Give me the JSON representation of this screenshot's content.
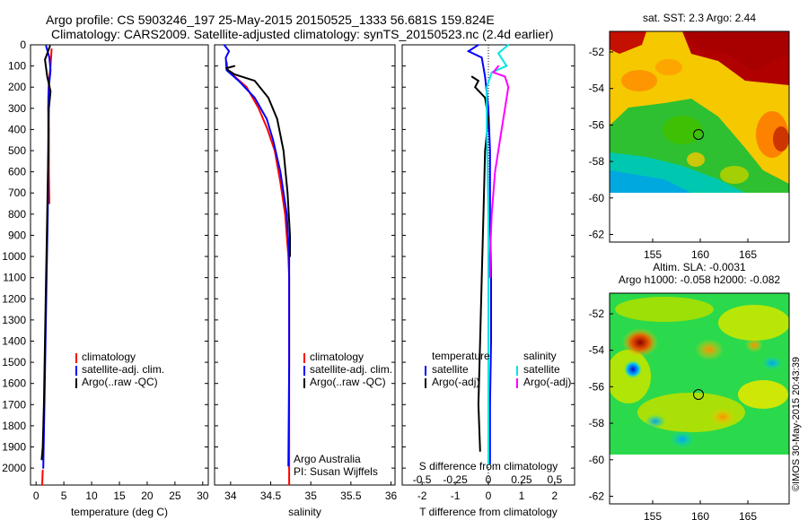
{
  "header": {
    "line1": "Argo profile: CS 5903246_197 25-May-2015 20150525_1333 56.681S 159.824E",
    "line2": "Climatology: CARS2009. Satellite-adjusted climatology: synTS_20150523.nc (2.4d earlier)"
  },
  "depth_axis": {
    "ticks": [
      0,
      100,
      200,
      300,
      400,
      500,
      600,
      700,
      800,
      900,
      1000,
      1100,
      1200,
      1300,
      1400,
      1500,
      1600,
      1700,
      1800,
      1900,
      2000
    ],
    "range": [
      0,
      2080
    ]
  },
  "colors": {
    "climatology": "#ff0000",
    "satellite": "#0000ff",
    "argo": "#000000",
    "sal_satellite": "#00e5e5",
    "sal_argo": "#ff00ff"
  },
  "legend": {
    "climatology": "climatology",
    "satellite_adj": "satellite-adj. clim.",
    "argo_raw": "Argo(..raw -QC)",
    "temperature": "temperature",
    "salinity": "salinity",
    "satellite": "satellite",
    "argo_adj": "Argo(-adj)"
  },
  "credits": {
    "org": "Argo Australia",
    "pi": "PI: Susan Wijffels"
  },
  "maps": {
    "sst_title": "sat. SST: 2.3 Argo: 2.44",
    "sla_title1": "Altim. SLA: -0.0031",
    "sla_title2": "Argo h1000: -0.058 h2000: -0.082",
    "lat_ticks": [
      "-52",
      "-54",
      "-56",
      "-58",
      "-60",
      "-62"
    ],
    "lon_ticks": [
      "155",
      "160",
      "165"
    ],
    "watermark": "©IMOS 30-May-2015 20:43:39"
  },
  "chart_data": [
    {
      "type": "line",
      "xlabel": "temperature (deg C)",
      "ylabel": "",
      "xlim": [
        -1,
        31
      ],
      "ylim": [
        2080,
        0
      ],
      "xticks": [
        "0",
        "5",
        "10",
        "15",
        "20",
        "25",
        "30"
      ],
      "series": [
        {
          "name": "climatology",
          "x": [
            2.8,
            2.6,
            2.3,
            2.2,
            2.2,
            2.3,
            2.3,
            2.3,
            2.4
          ],
          "depth": [
            20,
            100,
            180,
            250,
            300,
            400,
            500,
            600,
            750
          ]
        },
        {
          "name": "satellite-adj. clim.",
          "x": [
            1.8,
            2.4,
            2.6,
            2.3,
            2.2,
            2.2,
            2.1,
            1.9,
            1.7,
            1.5,
            1.3
          ],
          "depth": [
            5,
            60,
            120,
            200,
            300,
            500,
            800,
            1100,
            1400,
            1700,
            2000
          ]
        },
        {
          "name": "Argo(..raw -QC)",
          "x": [
            2.5,
            1.6,
            2.0,
            2.6,
            2.3,
            2.2,
            2.0,
            1.8,
            1.6,
            1.4,
            1.2,
            1.0
          ],
          "depth": [
            5,
            70,
            150,
            220,
            300,
            500,
            800,
            1100,
            1400,
            1700,
            1900,
            1960
          ]
        },
        {
          "name": "climatology-deep",
          "x": [
            1.2,
            1.1
          ],
          "depth": [
            2010,
            2080
          ]
        }
      ]
    },
    {
      "type": "line",
      "xlabel": "salinity",
      "ylabel": "",
      "xlim": [
        33.8,
        36.05
      ],
      "ylim": [
        2080,
        0
      ],
      "xticks": [
        "34",
        "34.5",
        "35",
        "35.5",
        "36"
      ],
      "series": [
        {
          "name": "climatology",
          "x": [
            33.95,
            33.96,
            34.05,
            34.2,
            34.35,
            34.46,
            34.55,
            34.62,
            34.68,
            34.72,
            34.73,
            34.73
          ],
          "depth": [
            80,
            120,
            150,
            200,
            300,
            400,
            500,
            650,
            800,
            1000,
            1100,
            2080
          ]
        },
        {
          "name": "satellite-adj. clim.",
          "x": [
            33.92,
            33.98,
            33.94,
            33.95,
            34.1,
            34.3,
            34.45,
            34.53,
            34.62,
            34.7,
            34.73,
            34.73,
            34.72
          ],
          "depth": [
            0,
            30,
            60,
            120,
            170,
            250,
            350,
            450,
            600,
            800,
            1000,
            1500,
            1990
          ]
        },
        {
          "name": "Argo(..raw -QC)",
          "x": [
            34.05,
            33.95,
            33.97,
            34.05,
            34.3,
            34.47,
            34.58,
            34.66,
            34.71,
            34.74,
            34.74
          ],
          "depth": [
            100,
            110,
            120,
            140,
            170,
            250,
            350,
            500,
            700,
            900,
            1000
          ]
        }
      ]
    },
    {
      "type": "line",
      "xlabel": "T difference from climatology",
      "x2label": "S difference from climatology",
      "ylabel": "",
      "xlim": [
        -2.6,
        2.6
      ],
      "ylim": [
        2080,
        0
      ],
      "xticks": [
        "-2",
        "-1",
        "0",
        "1",
        "2"
      ],
      "x2ticks": [
        "-0.5",
        "-0.25",
        "0",
        "0.25",
        "0.5"
      ],
      "series": [
        {
          "name": "temperature satellite",
          "x": [
            -0.3,
            -0.6,
            -0.2,
            -0.1,
            0.0,
            0.05,
            0.05,
            0.08,
            0.08,
            0.05,
            0.05
          ],
          "depth": [
            0,
            30,
            60,
            150,
            300,
            500,
            800,
            1100,
            1400,
            1700,
            1980
          ]
        },
        {
          "name": "temperature Argo(-adj)",
          "x": [
            -0.5,
            -0.3,
            -0.4,
            -0.1,
            0.0,
            -0.1,
            -0.15,
            -0.2,
            -0.25,
            -0.3,
            -0.25
          ],
          "depth": [
            150,
            170,
            200,
            250,
            350,
            500,
            800,
            1100,
            1400,
            1700,
            1920
          ]
        },
        {
          "name": "salinity satellite",
          "x": [
            0.6,
            0.3,
            0.55,
            0.1,
            -0.05,
            -0.05,
            0.0,
            0.0,
            0.0
          ],
          "depth": [
            0,
            40,
            100,
            130,
            200,
            400,
            800,
            1300,
            1980
          ]
        },
        {
          "name": "salinity Argo(-adj)",
          "x": [
            0.3,
            0.15,
            0.5,
            0.6,
            0.5,
            0.35,
            0.2,
            0.1,
            0.05,
            0.05
          ],
          "depth": [
            100,
            130,
            150,
            200,
            300,
            450,
            600,
            800,
            1000,
            1100
          ]
        }
      ]
    }
  ]
}
